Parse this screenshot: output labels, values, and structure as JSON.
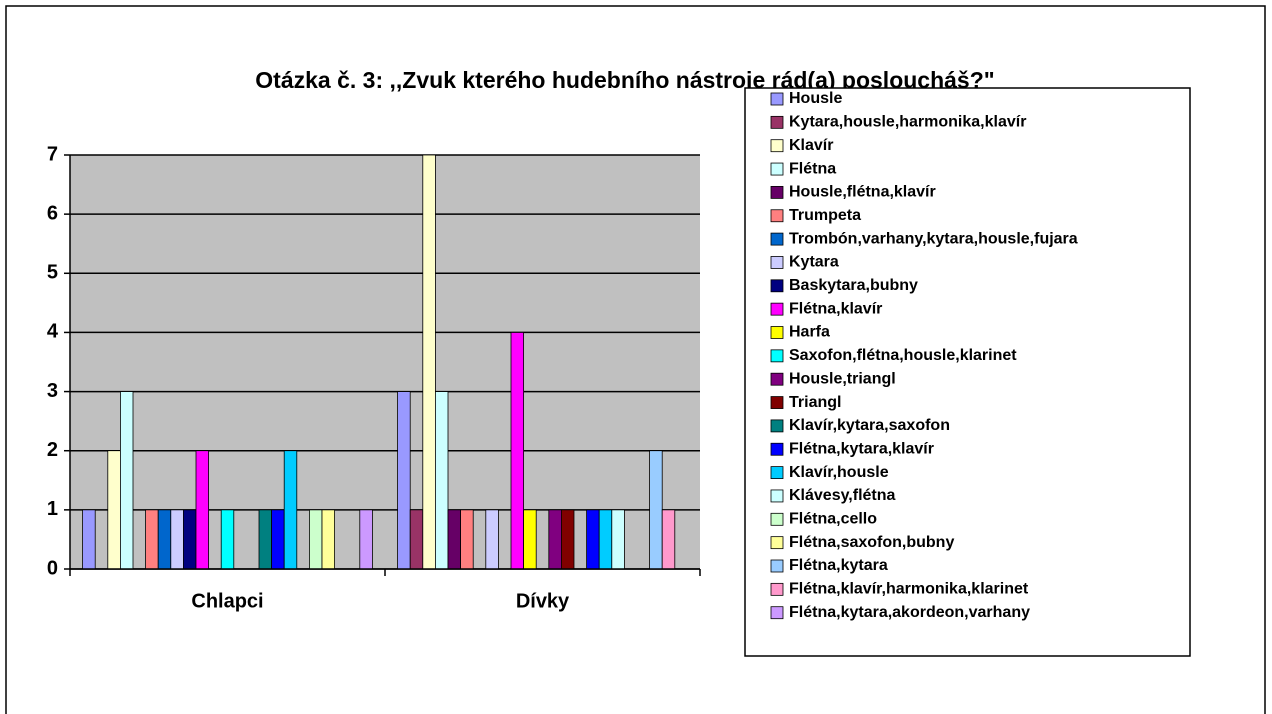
{
  "chart_data": {
    "type": "bar",
    "title": "Otázka č. 3: ,,Zvuk kterého hudebního nástroje rád(a) posloucháš?\"",
    "categories": [
      "Chlapci",
      "Dívky"
    ],
    "ylim": [
      0,
      7
    ],
    "yticks": [
      0,
      1,
      2,
      3,
      4,
      5,
      6,
      7
    ],
    "grid": true,
    "legend": "right",
    "series": [
      {
        "name": "Housle",
        "color": "#9999ff",
        "values": [
          1,
          3
        ]
      },
      {
        "name": "Kytara,housle,harmonika,klavír",
        "color": "#993366",
        "values": [
          0,
          1
        ]
      },
      {
        "name": "Klavír",
        "color": "#ffffcc",
        "values": [
          2,
          7
        ]
      },
      {
        "name": "Flétna",
        "color": "#ccffff",
        "values": [
          3,
          3
        ]
      },
      {
        "name": "Housle,flétna,klavír",
        "color": "#660066",
        "values": [
          0,
          1
        ]
      },
      {
        "name": "Trumpeta",
        "color": "#ff8080",
        "values": [
          1,
          1
        ]
      },
      {
        "name": "Trombón,varhany,kytara,housle,fujara",
        "color": "#0066cc",
        "values": [
          1,
          0
        ]
      },
      {
        "name": "Kytara",
        "color": "#ccccff",
        "values": [
          1,
          1
        ]
      },
      {
        "name": "Baskytara,bubny",
        "color": "#000080",
        "values": [
          1,
          0
        ]
      },
      {
        "name": "Flétna,klavír",
        "color": "#ff00ff",
        "values": [
          2,
          4
        ]
      },
      {
        "name": "Harfa",
        "color": "#ffff00",
        "values": [
          0,
          1
        ]
      },
      {
        "name": "Saxofon,flétna,housle,klarinet",
        "color": "#00ffff",
        "values": [
          1,
          0
        ]
      },
      {
        "name": "Housle,triangl",
        "color": "#800080",
        "values": [
          0,
          1
        ]
      },
      {
        "name": "Triangl",
        "color": "#800000",
        "values": [
          0,
          1
        ]
      },
      {
        "name": "Klavír,kytara,saxofon",
        "color": "#008080",
        "values": [
          1,
          0
        ]
      },
      {
        "name": "Flétna,kytara,klavír",
        "color": "#0000ff",
        "values": [
          1,
          1
        ]
      },
      {
        "name": "Klavír,housle",
        "color": "#00ccff",
        "values": [
          2,
          1
        ]
      },
      {
        "name": "Klávesy,flétna",
        "color": "#ccffff",
        "values": [
          0,
          1
        ]
      },
      {
        "name": "Flétna,cello",
        "color": "#ccffcc",
        "values": [
          1,
          0
        ]
      },
      {
        "name": "Flétna,saxofon,bubny",
        "color": "#ffff99",
        "values": [
          1,
          0
        ]
      },
      {
        "name": "Flétna,kytara",
        "color": "#99ccff",
        "values": [
          0,
          2
        ]
      },
      {
        "name": "Flétna,klavír,harmonika,klarinet",
        "color": "#ff99cc",
        "values": [
          0,
          1
        ]
      },
      {
        "name": "Flétna,kytara,akordeon,varhany",
        "color": "#cc99ff",
        "values": [
          1,
          0
        ]
      }
    ]
  }
}
